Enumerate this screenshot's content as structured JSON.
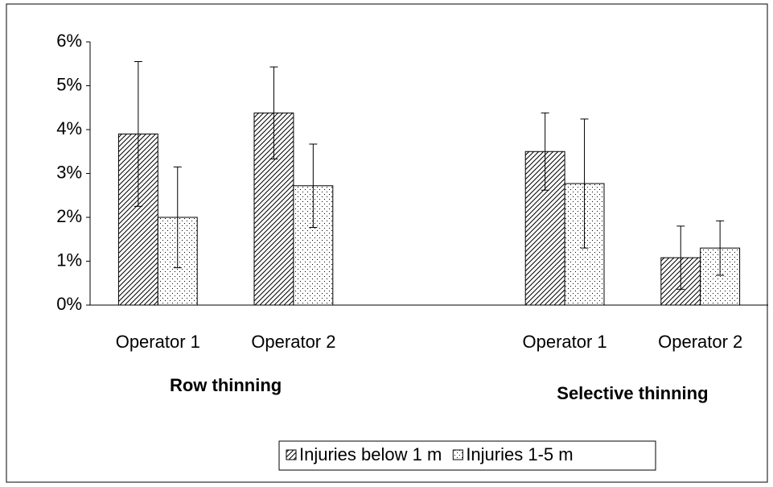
{
  "chart_data": {
    "type": "bar",
    "categories": [
      "Operator 1",
      "Operator 2",
      null,
      "Operator 1",
      "Operator 2"
    ],
    "groups": [
      {
        "label": "Row thinning"
      },
      {
        "label": "Selective thinning"
      }
    ],
    "series": [
      {
        "name": "Injuries below 1 m",
        "pattern": "hatch",
        "values": [
          3.9,
          4.38,
          null,
          3.5,
          1.08
        ],
        "errors": [
          1.65,
          1.05,
          null,
          0.88,
          0.72
        ]
      },
      {
        "name": "Injuries 1-5 m",
        "pattern": "dots",
        "values": [
          2.0,
          2.72,
          null,
          2.77,
          1.3
        ],
        "errors": [
          1.15,
          0.95,
          null,
          1.47,
          0.62
        ]
      }
    ],
    "ylim": [
      0,
      6
    ],
    "yticks": [
      {
        "value": 0,
        "label": "0%"
      },
      {
        "value": 1,
        "label": "1%"
      },
      {
        "value": 2,
        "label": "2%"
      },
      {
        "value": 3,
        "label": "3%"
      },
      {
        "value": 4,
        "label": "4%"
      },
      {
        "value": 5,
        "label": "5%"
      },
      {
        "value": 6,
        "label": "6%"
      }
    ],
    "legend": "bottom"
  }
}
